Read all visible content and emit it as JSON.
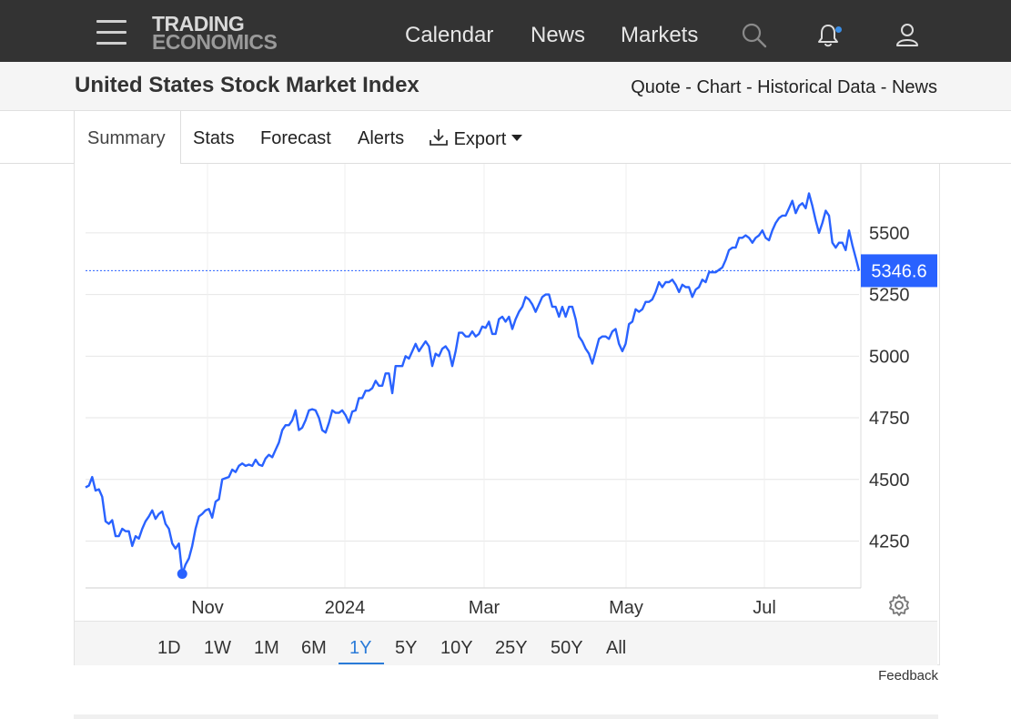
{
  "header": {
    "logo_line1": "TRADING",
    "logo_line2": "ECONOMICS",
    "nav": [
      "Calendar",
      "News",
      "Markets"
    ]
  },
  "title_band": {
    "title": "United States Stock Market Index",
    "links": [
      "Quote",
      "Chart",
      "Historical Data",
      "News"
    ]
  },
  "tabs": {
    "summary": "Summary",
    "stats": "Stats",
    "forecast": "Forecast",
    "alerts": "Alerts",
    "export": "Export"
  },
  "ranges": [
    "1D",
    "1W",
    "1M",
    "6M",
    "1Y",
    "5Y",
    "10Y",
    "25Y",
    "50Y",
    "All"
  ],
  "active_range": "1Y",
  "feedback": "Feedback",
  "colors": {
    "line": "#2962ff",
    "accent": "#2a7bd8",
    "last_badge": "#2962ff"
  },
  "chart_data": {
    "type": "line",
    "x_tick_labels": [
      "Nov",
      "2024",
      "Mar",
      "May",
      "Jul"
    ],
    "y_tick_labels": [
      "4250",
      "4500",
      "4750",
      "5000",
      "5250",
      "5500"
    ],
    "ylim": [
      4060,
      5780
    ],
    "grid": true,
    "last_value_label": "5346.6",
    "min_marker": {
      "index": 29,
      "value": 4117
    },
    "series": [
      {
        "values": [
          4468,
          4475,
          4510,
          4455,
          4460,
          4430,
          4330,
          4320,
          4335,
          4270,
          4270,
          4300,
          4290,
          4290,
          4230,
          4270,
          4260,
          4300,
          4330,
          4350,
          4375,
          4340,
          4360,
          4370,
          4320,
          4300,
          4240,
          4220,
          4240,
          4117,
          4155,
          4180,
          4230,
          4300,
          4350,
          4360,
          4375,
          4380,
          4345,
          4410,
          4420,
          4500,
          4505,
          4510,
          4540,
          4530,
          4555,
          4565,
          4555,
          4560,
          4555,
          4580,
          4560,
          4555,
          4585,
          4600,
          4590,
          4620,
          4650,
          4700,
          4720,
          4720,
          4740,
          4780,
          4700,
          4710,
          4740,
          4780,
          4785,
          4780,
          4750,
          4700,
          4690,
          4730,
          4780,
          4770,
          4770,
          4780,
          4760,
          4730,
          4775,
          4780,
          4830,
          4830,
          4860,
          4860,
          4870,
          4900,
          4880,
          4880,
          4930,
          4930,
          4850,
          4960,
          4960,
          4960,
          5000,
          4990,
          5020,
          5050,
          5020,
          5040,
          5060,
          5040,
          4960,
          5010,
          5000,
          5030,
          5040,
          5020,
          4960,
          5020,
          5095,
          5095,
          5080,
          5080,
          5100,
          5080,
          5090,
          5120,
          5115,
          5140,
          5090,
          5090,
          5150,
          5160,
          5140,
          5160,
          5110,
          5150,
          5180,
          5200,
          5240,
          5230,
          5210,
          5180,
          5210,
          5240,
          5250,
          5250,
          5200,
          5200,
          5160,
          5200,
          5160,
          5200,
          5200,
          5150,
          5080,
          5060,
          5030,
          5010,
          4970,
          5020,
          5070,
          5080,
          5080,
          5070,
          5100,
          5110,
          5050,
          5020,
          5050,
          5130,
          5140,
          5190,
          5180,
          5190,
          5220,
          5220,
          5230,
          5260,
          5300,
          5280,
          5300,
          5300,
          5310,
          5290,
          5260,
          5290,
          5280,
          5280,
          5240,
          5270,
          5280,
          5310,
          5300,
          5340,
          5340,
          5340,
          5350,
          5360,
          5390,
          5430,
          5440,
          5440,
          5480,
          5480,
          5490,
          5480,
          5460,
          5480,
          5490,
          5510,
          5480,
          5470,
          5510,
          5540,
          5560,
          5570,
          5570,
          5600,
          5630,
          5580,
          5610,
          5620,
          5600,
          5660,
          5610,
          5550,
          5500,
          5540,
          5590,
          5570,
          5460,
          5440,
          5460,
          5460,
          5430,
          5510,
          5450,
          5400,
          5346.6
        ]
      }
    ]
  }
}
